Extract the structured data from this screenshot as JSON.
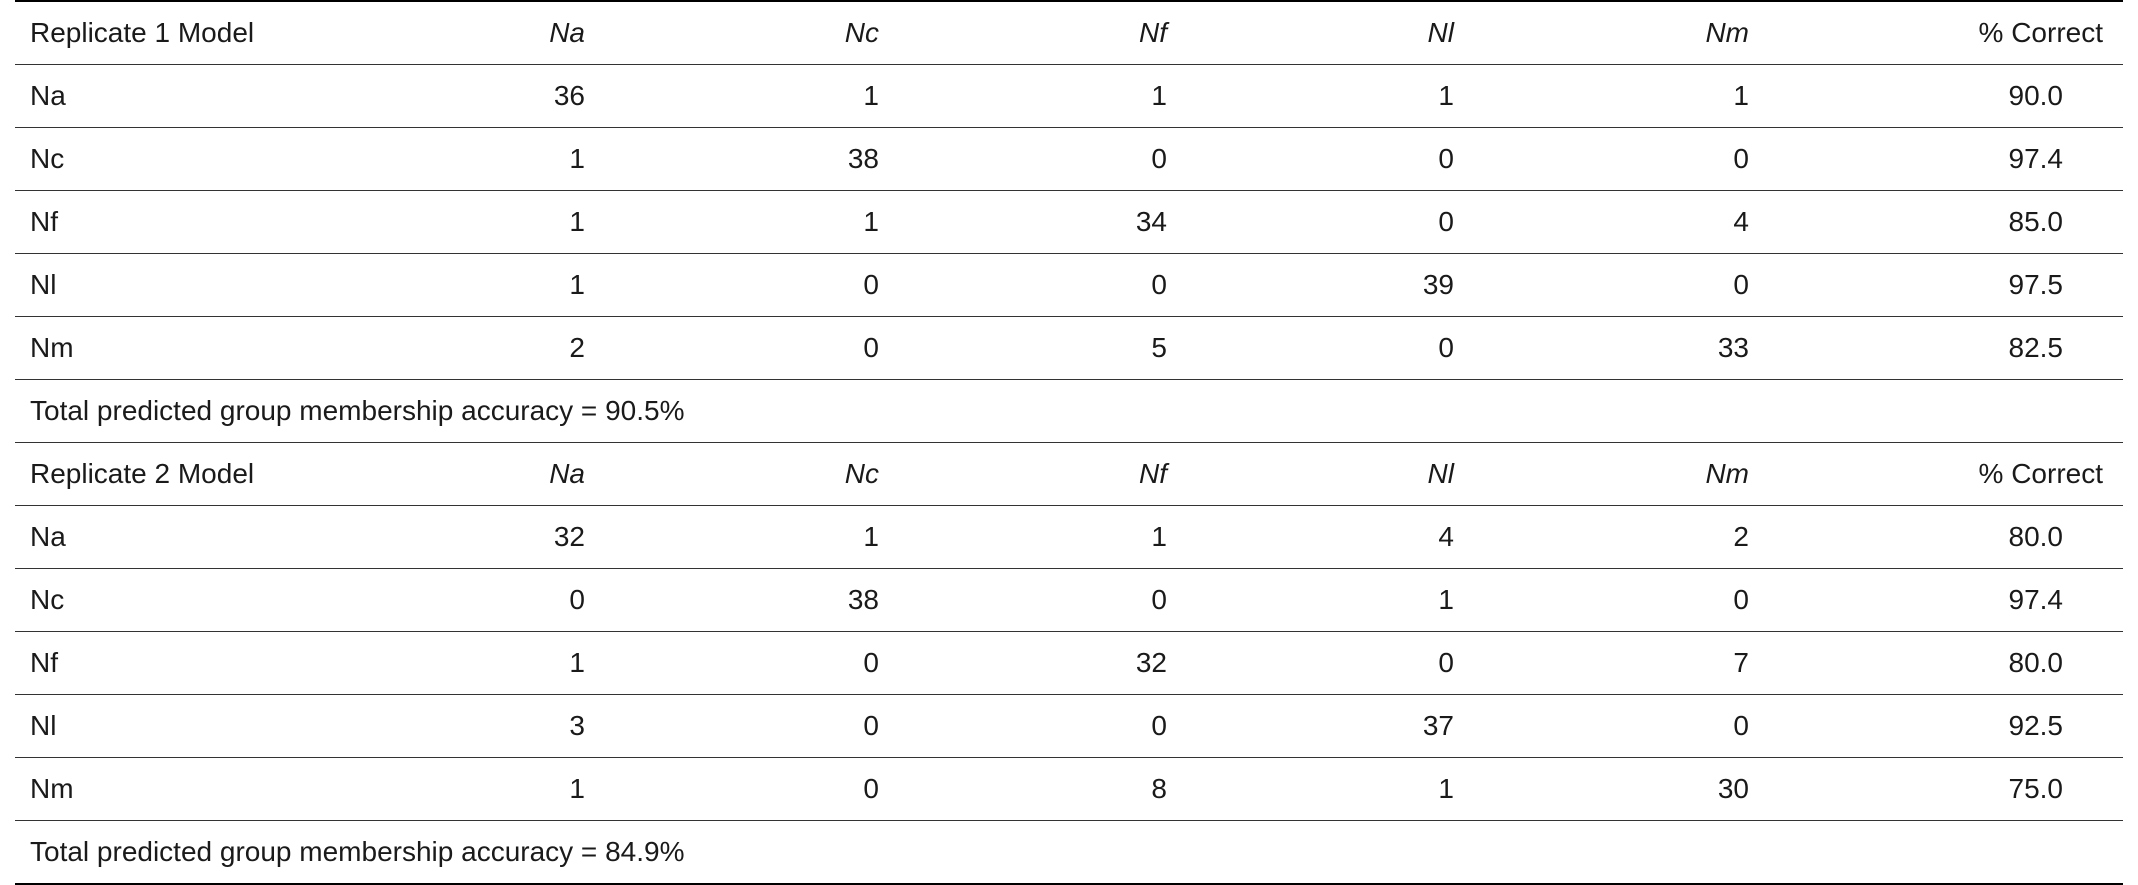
{
  "blocks": [
    {
      "header": {
        "model_label": "Replicate 1 Model",
        "columns": [
          "Na",
          "Nc",
          "Nf",
          "Nl",
          "Nm"
        ],
        "correct_label": "% Correct"
      },
      "rows": [
        {
          "group": "Na",
          "values": [
            "36",
            "1",
            "1",
            "1",
            "1"
          ],
          "correct": "90.0"
        },
        {
          "group": "Nc",
          "values": [
            "1",
            "38",
            "0",
            "0",
            "0"
          ],
          "correct": "97.4"
        },
        {
          "group": "Nf",
          "values": [
            "1",
            "1",
            "34",
            "0",
            "4"
          ],
          "correct": "85.0"
        },
        {
          "group": "Nl",
          "values": [
            "1",
            "0",
            "0",
            "39",
            "0"
          ],
          "correct": "97.5"
        },
        {
          "group": "Nm",
          "values": [
            "2",
            "0",
            "5",
            "0",
            "33"
          ],
          "correct": "82.5"
        }
      ],
      "total": "Total predicted group membership accuracy = 90.5%"
    },
    {
      "header": {
        "model_label": "Replicate 2 Model",
        "columns": [
          "Na",
          "Nc",
          "Nf",
          "Nl",
          "Nm"
        ],
        "correct_label": "% Correct"
      },
      "rows": [
        {
          "group": "Na",
          "values": [
            "32",
            "1",
            "1",
            "4",
            "2"
          ],
          "correct": "80.0"
        },
        {
          "group": "Nc",
          "values": [
            "0",
            "38",
            "0",
            "1",
            "0"
          ],
          "correct": "97.4"
        },
        {
          "group": "Nf",
          "values": [
            "1",
            "0",
            "32",
            "0",
            "7"
          ],
          "correct": "80.0"
        },
        {
          "group": "Nl",
          "values": [
            "3",
            "0",
            "0",
            "37",
            "0"
          ],
          "correct": "92.5"
        },
        {
          "group": "Nm",
          "values": [
            "1",
            "0",
            "8",
            "1",
            "30"
          ],
          "correct": "75.0"
        }
      ],
      "total": "Total predicted group membership accuracy = 84.9%"
    }
  ]
}
